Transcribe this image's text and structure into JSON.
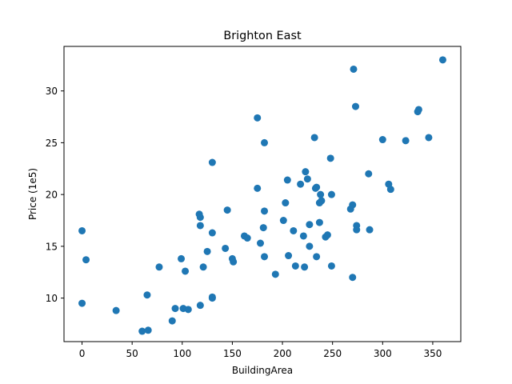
{
  "chart_data": {
    "type": "scatter",
    "title": "Brighton East",
    "xlabel": "BuildingArea",
    "ylabel": "Price (1e5)",
    "xlim": [
      -18,
      378
    ],
    "ylim": [
      5.8,
      34.3
    ],
    "xticks": [
      0,
      50,
      100,
      150,
      200,
      250,
      300,
      350
    ],
    "yticks": [
      10,
      15,
      20,
      25,
      30
    ],
    "grid": false,
    "colors": {
      "points": "#1f77b4",
      "axes": "#000000",
      "background": "#ffffff"
    },
    "series": [
      {
        "points": [
          [
            0,
            16.5
          ],
          [
            0,
            9.5
          ],
          [
            4,
            13.7
          ],
          [
            34,
            8.8
          ],
          [
            60,
            6.8
          ],
          [
            65,
            10.3
          ],
          [
            66,
            6.9
          ],
          [
            77,
            13.0
          ],
          [
            90,
            7.8
          ],
          [
            93,
            9.0
          ],
          [
            99,
            13.8
          ],
          [
            101,
            9.0
          ],
          [
            103,
            12.6
          ],
          [
            106,
            8.9
          ],
          [
            117,
            18.1
          ],
          [
            118,
            17.8
          ],
          [
            118,
            17.0
          ],
          [
            118,
            9.3
          ],
          [
            121,
            13.0
          ],
          [
            125,
            14.5
          ],
          [
            130,
            23.1
          ],
          [
            130,
            16.3
          ],
          [
            130,
            10.0
          ],
          [
            130,
            10.1
          ],
          [
            143,
            14.8
          ],
          [
            145,
            18.5
          ],
          [
            150,
            13.8
          ],
          [
            151,
            13.5
          ],
          [
            162,
            16.0
          ],
          [
            165,
            15.8
          ],
          [
            175,
            27.4
          ],
          [
            175,
            20.6
          ],
          [
            178,
            15.3
          ],
          [
            181,
            16.8
          ],
          [
            182,
            25.0
          ],
          [
            182,
            18.4
          ],
          [
            182,
            14.0
          ],
          [
            193,
            12.3
          ],
          [
            201,
            17.5
          ],
          [
            203,
            19.2
          ],
          [
            205,
            21.4
          ],
          [
            206,
            14.1
          ],
          [
            211,
            16.5
          ],
          [
            213,
            13.1
          ],
          [
            218,
            21.0
          ],
          [
            221,
            16.0
          ],
          [
            222,
            13.0
          ],
          [
            223,
            22.2
          ],
          [
            225,
            21.5
          ],
          [
            227,
            15.0
          ],
          [
            227,
            17.1
          ],
          [
            232,
            25.5
          ],
          [
            233,
            20.6
          ],
          [
            234,
            20.7
          ],
          [
            234,
            14.0
          ],
          [
            237,
            19.2
          ],
          [
            237,
            17.3
          ],
          [
            238,
            20.0
          ],
          [
            239,
            19.4
          ],
          [
            243,
            15.9
          ],
          [
            245,
            16.1
          ],
          [
            248,
            23.5
          ],
          [
            249,
            20.0
          ],
          [
            249,
            13.1
          ],
          [
            268,
            18.6
          ],
          [
            270,
            19.0
          ],
          [
            270,
            12.0
          ],
          [
            271,
            32.1
          ],
          [
            273,
            28.5
          ],
          [
            274,
            17.0
          ],
          [
            274,
            16.6
          ],
          [
            286,
            22.0
          ],
          [
            287,
            16.6
          ],
          [
            300,
            25.3
          ],
          [
            306,
            21.0
          ],
          [
            308,
            20.5
          ],
          [
            323,
            25.2
          ],
          [
            335,
            28.0
          ],
          [
            336,
            28.2
          ],
          [
            346,
            25.5
          ],
          [
            360,
            33.0
          ]
        ]
      }
    ]
  }
}
